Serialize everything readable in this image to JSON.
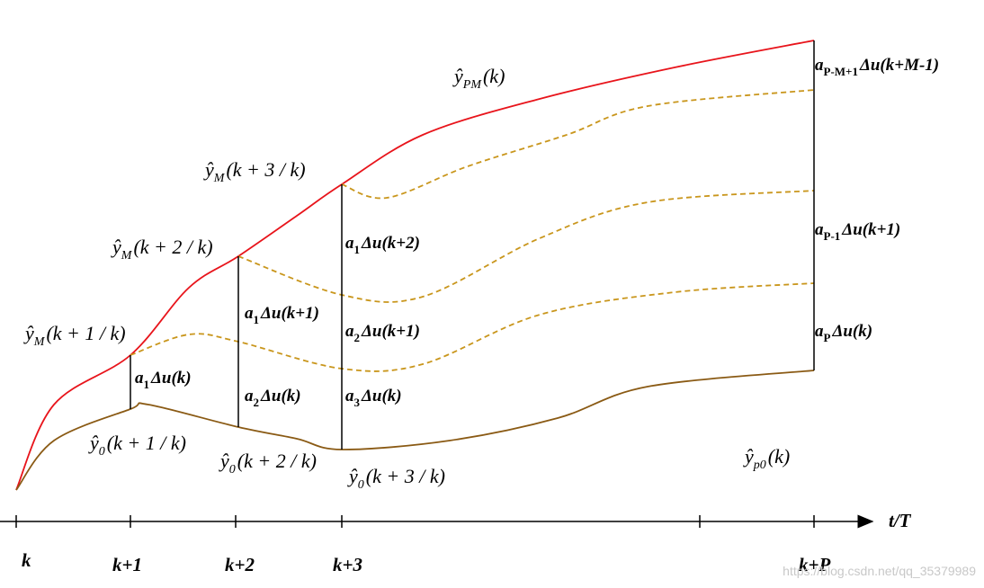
{
  "labels": {
    "predicted_pm": {
      "base": "ŷ",
      "sub": "PM",
      "rest": "(k)"
    },
    "predicted_m3": {
      "base": "ŷ",
      "sub": "M",
      "rest": "(k + 3 / k)"
    },
    "predicted_m2": {
      "base": "ŷ",
      "sub": "M",
      "rest": "(k + 2 / k)"
    },
    "predicted_m1": {
      "base": "ŷ",
      "sub": "M",
      "rest": "(k + 1 / k)"
    },
    "initial_1": {
      "base": "ŷ",
      "sub": "0",
      "rest": "(k + 1 / k)"
    },
    "initial_2": {
      "base": "ŷ",
      "sub": "0",
      "rest": "(k + 2 / k)"
    },
    "initial_3": {
      "base": "ŷ",
      "sub": "0",
      "rest": "(k + 3 / k)"
    },
    "initial_p": {
      "base": "ŷ",
      "sub": "p0",
      "rest": "(k)"
    }
  },
  "increments": {
    "a1_k": {
      "base": "a",
      "sub": "1",
      "rest": "Δu(k)"
    },
    "a1_k1": {
      "base": "a",
      "sub": "1",
      "rest": "Δu(k+1)"
    },
    "a2_k": {
      "base": "a",
      "sub": "2",
      "rest": "Δu(k)"
    },
    "a1_k2": {
      "base": "a",
      "sub": "1",
      "rest": "Δu(k+2)"
    },
    "a2_k1": {
      "base": "a",
      "sub": "2",
      "rest": "Δu(k+1)"
    },
    "a3_k": {
      "base": "a",
      "sub": "3",
      "rest": "Δu(k)"
    },
    "apm1": {
      "base": "a",
      "sub": "P-M+1",
      "rest": "Δu(k+M-1)"
    },
    "ap1": {
      "base": "a",
      "sub": "P-1",
      "rest": "Δu(k+1)"
    },
    "ap": {
      "base": "a",
      "sub": "P",
      "rest": "Δu(k)"
    }
  },
  "axis": {
    "ticks": [
      "k",
      "k+1",
      "k+2",
      "k+3",
      "k+P"
    ],
    "label": "t/T"
  },
  "watermark": "https://blog.csdn.net/qq_35379989"
}
